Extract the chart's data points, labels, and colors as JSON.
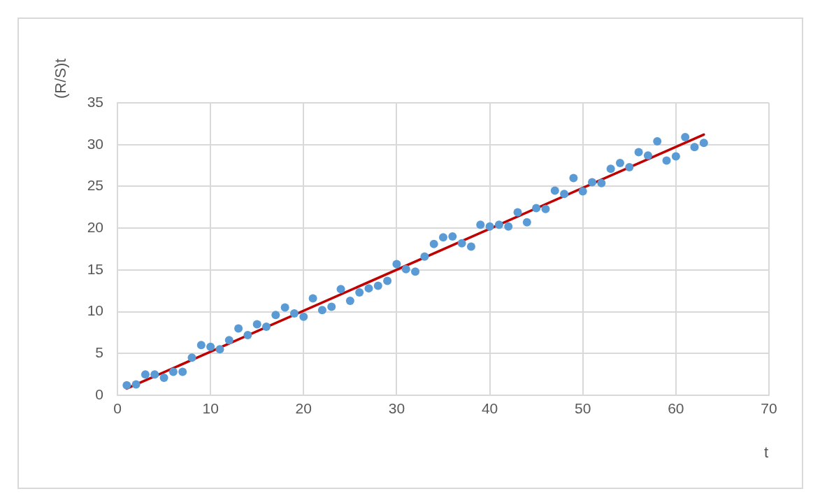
{
  "chart_data": {
    "type": "scatter",
    "xlabel": "t",
    "ylabel": "(R/S)t",
    "xlim": [
      0,
      70
    ],
    "xticks": [
      0,
      10,
      20,
      30,
      40,
      50,
      60,
      70
    ],
    "ylim": [
      0,
      35
    ],
    "yticks": [
      0,
      5,
      10,
      15,
      20,
      25,
      30,
      35
    ],
    "grid": true,
    "legend": false,
    "marker": "circle",
    "series": [
      {
        "type": "scatter",
        "color": "#5b9bd5",
        "x": [
          1,
          2,
          3,
          4,
          5,
          6,
          7,
          8,
          9,
          10,
          11,
          12,
          13,
          14,
          15,
          16,
          17,
          18,
          19,
          20,
          21,
          22,
          23,
          24,
          25,
          26,
          27,
          28,
          29,
          30,
          31,
          32,
          33,
          34,
          35,
          36,
          37,
          38,
          39,
          40,
          41,
          42,
          43,
          44,
          45,
          46,
          47,
          48,
          49,
          50,
          51,
          52,
          53,
          54,
          55,
          56,
          57,
          58,
          59,
          60,
          61,
          62,
          63
        ],
        "values": [
          1.2,
          1.3,
          2.5,
          2.5,
          2.1,
          2.8,
          2.8,
          4.5,
          6.0,
          5.8,
          5.5,
          6.6,
          8.0,
          7.2,
          8.5,
          8.2,
          9.6,
          10.5,
          9.8,
          9.4,
          11.6,
          10.2,
          10.6,
          12.7,
          11.3,
          12.3,
          12.8,
          13.1,
          13.7,
          15.7,
          15.1,
          14.8,
          16.6,
          18.1,
          18.9,
          19.0,
          18.2,
          17.8,
          20.4,
          20.2,
          20.4,
          20.2,
          21.9,
          20.7,
          22.4,
          22.3,
          24.5,
          24.1,
          26.0,
          24.4,
          25.5,
          25.4,
          27.1,
          27.8,
          27.3,
          29.1,
          28.7,
          30.4,
          28.1,
          28.6,
          30.9,
          29.7,
          30.2
        ]
      },
      {
        "type": "line",
        "marker": "none",
        "color": "#c00000",
        "x": [
          1,
          63
        ],
        "values": [
          0.8,
          31.2
        ]
      }
    ]
  }
}
